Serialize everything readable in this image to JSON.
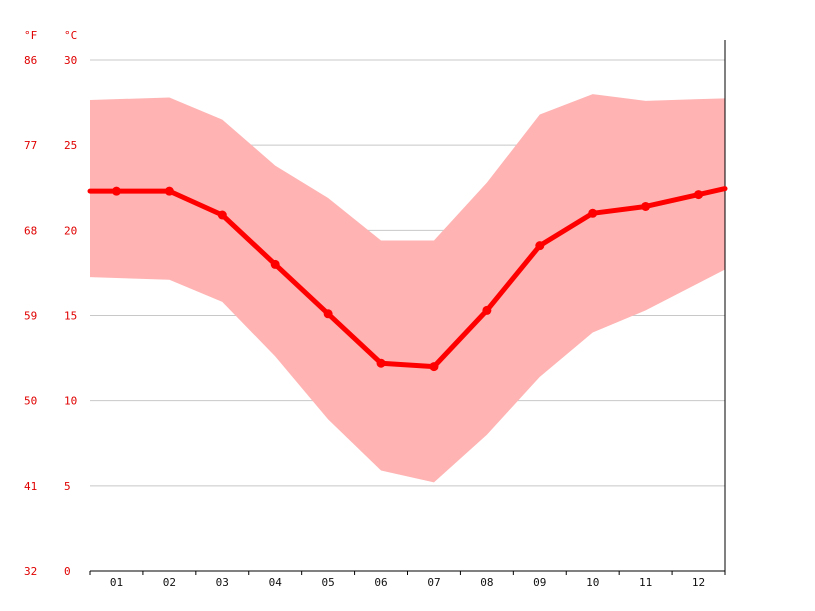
{
  "chart_data": {
    "type": "line",
    "title": "",
    "xlabel": "",
    "ylabel": "",
    "unit_labels": {
      "fahrenheit": "°F",
      "celsius": "°C"
    },
    "categories": [
      "01",
      "02",
      "03",
      "04",
      "05",
      "06",
      "07",
      "08",
      "09",
      "10",
      "11",
      "12"
    ],
    "y_ticks_celsius": [
      "0",
      "5",
      "10",
      "15",
      "20",
      "25",
      "30"
    ],
    "y_ticks_fahrenheit": [
      "32",
      "41",
      "50",
      "59",
      "68",
      "77",
      "86"
    ],
    "ylim": [
      0,
      30
    ],
    "grid": true,
    "series": [
      {
        "values": [
          22.3,
          22.3,
          20.9,
          18.0,
          15.1,
          12.2,
          12.0,
          15.3,
          19.1,
          21.0,
          21.4,
          22.1
        ]
      }
    ],
    "band": {
      "max": [
        27.7,
        27.8,
        26.5,
        23.8,
        21.9,
        19.4,
        19.4,
        22.8,
        26.8,
        28.0,
        27.6,
        27.7
      ],
      "min": [
        17.2,
        17.1,
        15.8,
        12.6,
        8.9,
        5.9,
        5.2,
        8.0,
        11.4,
        14.0,
        15.3,
        16.9
      ]
    },
    "colors": {
      "line": "#ff0000",
      "band": "#ffb3b3",
      "tick_text": "#e00000"
    }
  }
}
